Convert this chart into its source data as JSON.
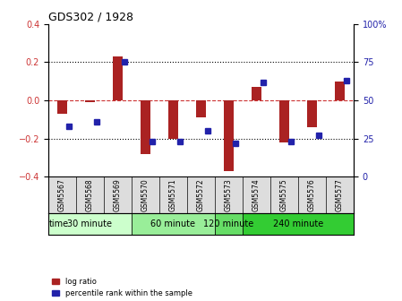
{
  "title": "GDS302 / 1928",
  "samples": [
    "GSM5567",
    "GSM5568",
    "GSM5569",
    "GSM5570",
    "GSM5571",
    "GSM5572",
    "GSM5573",
    "GSM5574",
    "GSM5575",
    "GSM5576",
    "GSM5577"
  ],
  "log_ratio": [
    -0.07,
    -0.01,
    0.23,
    -0.28,
    -0.2,
    -0.09,
    -0.37,
    0.07,
    -0.22,
    -0.14,
    0.1
  ],
  "percentile": [
    33,
    36,
    75,
    23,
    23,
    30,
    22,
    62,
    23,
    27,
    63
  ],
  "groups": [
    {
      "label": "30 minute",
      "start": 0,
      "end": 3,
      "color": "#ccffcc"
    },
    {
      "label": "60 minute",
      "start": 3,
      "end": 6,
      "color": "#99ee99"
    },
    {
      "label": "120 minute",
      "start": 6,
      "end": 7,
      "color": "#66dd66"
    },
    {
      "label": "240 minute",
      "start": 7,
      "end": 11,
      "color": "#33cc33"
    }
  ],
  "ylim_left": [
    -0.4,
    0.4
  ],
  "ylim_right": [
    0,
    100
  ],
  "yticks_left": [
    -0.4,
    -0.2,
    0.0,
    0.2,
    0.4
  ],
  "yticks_right": [
    0,
    25,
    50,
    75,
    100
  ],
  "bar_color": "#aa2222",
  "dot_color": "#2222aa",
  "grid_color": "#000000",
  "dashed_zero_color": "#cc3333",
  "legend_log_ratio": "log ratio",
  "legend_percentile": "percentile rank within the sample",
  "time_label": "time",
  "bg_color": "#ffffff",
  "plot_bg": "#ffffff"
}
